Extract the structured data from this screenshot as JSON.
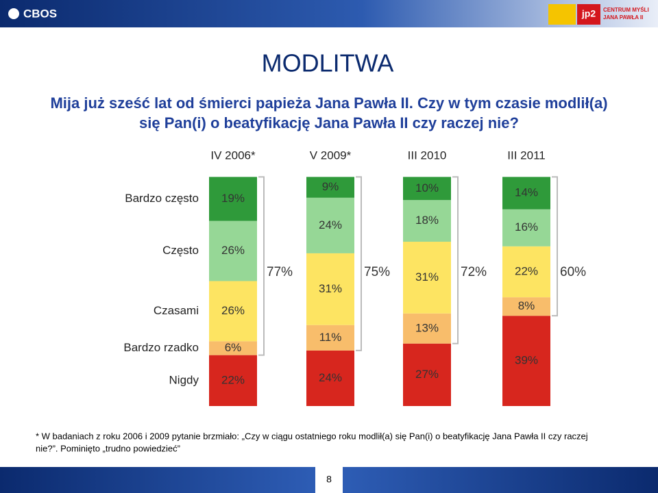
{
  "header": {
    "logo_left": "CBOS",
    "logo_right": "jp2",
    "logo_right_text_1": "CENTRUM MYŚLI",
    "logo_right_text_2": "JANA PAWŁA II"
  },
  "chart_data": {
    "type": "stacked_bar",
    "title": "MODLITWA",
    "subtitle": [
      "Mija już sześć lat od śmierci papieża Jana Pawła II. Czy w tym czasie modlił(a)",
      "się Pan(i) o beatyfikację Jana Pawła II czy raczej nie?"
    ],
    "categories": [
      "IV 2006*",
      "V 2009*",
      "III 2010",
      "III 2011"
    ],
    "ylim": [
      0,
      100
    ],
    "series": [
      {
        "name": "Bardzo często",
        "color": "#2f9a3a",
        "values": [
          19,
          9,
          10,
          14
        ],
        "value_labels": [
          "19%",
          "9%",
          "10%",
          "14%"
        ]
      },
      {
        "name": "Często",
        "color": "#96d796",
        "values": [
          26,
          24,
          18,
          16
        ],
        "value_labels": [
          "26%",
          "24%",
          "18%",
          "16%"
        ]
      },
      {
        "name": "Czasami",
        "color": "#fde462",
        "values": [
          26,
          31,
          31,
          22
        ],
        "value_labels": [
          "26%",
          "31%",
          "31%",
          "22%"
        ]
      },
      {
        "name": "Bardzo rzadko",
        "color": "#f8bd6b",
        "values": [
          6,
          11,
          13,
          8
        ],
        "value_labels": [
          "6%",
          "11%",
          "13%",
          "8%"
        ]
      },
      {
        "name": "Nigdy",
        "color": "#d7261e",
        "values": [
          22,
          24,
          27,
          39
        ],
        "value_labels": [
          "22%",
          "24%",
          "27%",
          "39%"
        ]
      }
    ],
    "totals": {
      "values": [
        77,
        75,
        72,
        60
      ],
      "value_labels": [
        "77%",
        "75%",
        "72%",
        "60%"
      ]
    }
  },
  "footnote": [
    "* W badaniach z roku 2006 i 2009 pytanie brzmiało: „Czy w ciągu ostatniego roku modlił(a) się Pan(i) o beatyfikację Jana Pawła II  czy raczej",
    "nie?”. Pominięto „trudno powiedzieć”"
  ],
  "page_number": "8"
}
